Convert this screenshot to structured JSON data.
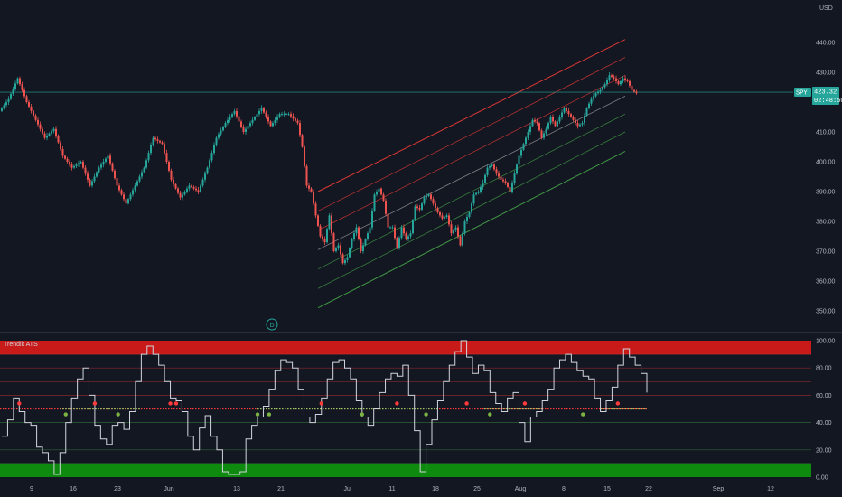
{
  "colors": {
    "background": "#131722",
    "up": "#26a69a",
    "down": "#ef5350",
    "channel_upper": "#e53935",
    "channel_lower": "#43a047",
    "osc_line": "#d1d4dc",
    "overbought_band": "#c91a1a",
    "oversold_band": "#0e8a0e",
    "midline_red": "#ff3b3b",
    "midline_green": "#9ccc65",
    "price_line": "#26a69a"
  },
  "header": {
    "currency": "USD"
  },
  "price_badge": {
    "symbol": "SPY",
    "price": "423.32",
    "countdown": "02:48:50"
  },
  "event_marker": {
    "label": "D"
  },
  "chart_data": [
    {
      "type": "candlestick",
      "symbol": "SPY",
      "y_ticks": [
        "440.00",
        "430.00",
        "420.00",
        "410.00",
        "400.00",
        "390.00",
        "380.00",
        "370.00",
        "360.00",
        "350.00"
      ],
      "y_tick_values": [
        440,
        430,
        420,
        410,
        400,
        390,
        380,
        370,
        360,
        350
      ],
      "x_ticks": [
        "9",
        "16",
        "23",
        "Jun",
        "13",
        "21",
        "Jul",
        "11",
        "18",
        "25",
        "Aug",
        "8",
        "15",
        "22",
        "Sep",
        "12"
      ],
      "last_price": 423.32,
      "price_path": [
        [
          0,
          417
        ],
        [
          4,
          421
        ],
        [
          8,
          428
        ],
        [
          12,
          420
        ],
        [
          16,
          414
        ],
        [
          20,
          408
        ],
        [
          24,
          411
        ],
        [
          28,
          402
        ],
        [
          32,
          398
        ],
        [
          36,
          400
        ],
        [
          40,
          392
        ],
        [
          44,
          398
        ],
        [
          48,
          402
        ],
        [
          52,
          392
        ],
        [
          56,
          386
        ],
        [
          60,
          392
        ],
        [
          64,
          398
        ],
        [
          68,
          408
        ],
        [
          72,
          406
        ],
        [
          76,
          394
        ],
        [
          80,
          388
        ],
        [
          84,
          392
        ],
        [
          88,
          390
        ],
        [
          92,
          398
        ],
        [
          96,
          408
        ],
        [
          100,
          413
        ],
        [
          104,
          417
        ],
        [
          108,
          410
        ],
        [
          112,
          414
        ],
        [
          116,
          418
        ],
        [
          120,
          412
        ],
        [
          124,
          416
        ],
        [
          128,
          416
        ],
        [
          132,
          413
        ],
        [
          134,
          405
        ],
        [
          136,
          392
        ],
        [
          138,
          390
        ],
        [
          140,
          382
        ],
        [
          142,
          375
        ],
        [
          144,
          373
        ],
        [
          146,
          382
        ],
        [
          148,
          370
        ],
        [
          150,
          372
        ],
        [
          152,
          366
        ],
        [
          154,
          368
        ],
        [
          156,
          374
        ],
        [
          158,
          378
        ],
        [
          160,
          370
        ],
        [
          162,
          374
        ],
        [
          164,
          378
        ],
        [
          166,
          389
        ],
        [
          168,
          391
        ],
        [
          170,
          387
        ],
        [
          172,
          378
        ],
        [
          174,
          378
        ],
        [
          176,
          371
        ],
        [
          178,
          378
        ],
        [
          180,
          374
        ],
        [
          182,
          376
        ],
        [
          184,
          385
        ],
        [
          186,
          384
        ],
        [
          188,
          388
        ],
        [
          190,
          389
        ],
        [
          192,
          386
        ],
        [
          194,
          383
        ],
        [
          196,
          381
        ],
        [
          198,
          382
        ],
        [
          200,
          376
        ],
        [
          202,
          378
        ],
        [
          204,
          372
        ],
        [
          206,
          380
        ],
        [
          208,
          383
        ],
        [
          210,
          389
        ],
        [
          212,
          390
        ],
        [
          214,
          393
        ],
        [
          216,
          398
        ],
        [
          218,
          399
        ],
        [
          220,
          396
        ],
        [
          222,
          394
        ],
        [
          224,
          393
        ],
        [
          226,
          390
        ],
        [
          228,
          396
        ],
        [
          230,
          402
        ],
        [
          232,
          406
        ],
        [
          234,
          410
        ],
        [
          236,
          414
        ],
        [
          238,
          413
        ],
        [
          240,
          408
        ],
        [
          242,
          411
        ],
        [
          244,
          415
        ],
        [
          246,
          412
        ],
        [
          248,
          415
        ],
        [
          250,
          418
        ],
        [
          252,
          416
        ],
        [
          254,
          414
        ],
        [
          256,
          412
        ],
        [
          258,
          413
        ],
        [
          260,
          418
        ],
        [
          262,
          421
        ],
        [
          264,
          423
        ],
        [
          266,
          424
        ],
        [
          268,
          426
        ],
        [
          270,
          429
        ],
        [
          272,
          428
        ],
        [
          274,
          426
        ],
        [
          276,
          428
        ],
        [
          278,
          427
        ],
        [
          280,
          424
        ],
        [
          282,
          423
        ]
      ],
      "regression_channel": {
        "start_index": 140,
        "end_index": 276,
        "lines_start": [
          390,
          383.5,
          377,
          370.5,
          364,
          357.5,
          351
        ],
        "lines_end": [
          441,
          435,
          429,
          422,
          416,
          410,
          403.5
        ]
      }
    },
    {
      "type": "line",
      "title": "Trendlit ATS",
      "y_ticks": [
        "100.00",
        "80.00",
        "60.00",
        "40.00",
        "20.00",
        "0.00"
      ],
      "y_tick_values": [
        100,
        80,
        60,
        40,
        20,
        0
      ],
      "grid_levels": [
        90,
        80,
        70,
        60,
        40,
        30,
        20,
        10
      ],
      "overbought_band": [
        90,
        100
      ],
      "oversold_band": [
        0,
        10
      ],
      "midline": 50,
      "last_value": 62,
      "values": [
        [
          0,
          30
        ],
        [
          2,
          42
        ],
        [
          4,
          58
        ],
        [
          6,
          48
        ],
        [
          8,
          40
        ],
        [
          10,
          38
        ],
        [
          12,
          22
        ],
        [
          14,
          18
        ],
        [
          16,
          12
        ],
        [
          18,
          2
        ],
        [
          20,
          18
        ],
        [
          22,
          40
        ],
        [
          24,
          58
        ],
        [
          26,
          72
        ],
        [
          28,
          80
        ],
        [
          30,
          60
        ],
        [
          32,
          38
        ],
        [
          34,
          28
        ],
        [
          36,
          24
        ],
        [
          38,
          38
        ],
        [
          40,
          40
        ],
        [
          42,
          35
        ],
        [
          44,
          48
        ],
        [
          46,
          70
        ],
        [
          48,
          90
        ],
        [
          50,
          96
        ],
        [
          52,
          90
        ],
        [
          54,
          82
        ],
        [
          56,
          70
        ],
        [
          58,
          58
        ],
        [
          60,
          56
        ],
        [
          62,
          48
        ],
        [
          64,
          30
        ],
        [
          66,
          20
        ],
        [
          68,
          36
        ],
        [
          70,
          45
        ],
        [
          72,
          30
        ],
        [
          74,
          20
        ],
        [
          76,
          4
        ],
        [
          78,
          2
        ],
        [
          80,
          2
        ],
        [
          82,
          4
        ],
        [
          84,
          28
        ],
        [
          86,
          38
        ],
        [
          88,
          44
        ],
        [
          90,
          52
        ],
        [
          92,
          64
        ],
        [
          94,
          78
        ],
        [
          96,
          86
        ],
        [
          98,
          84
        ],
        [
          100,
          80
        ],
        [
          102,
          64
        ],
        [
          104,
          44
        ],
        [
          106,
          40
        ],
        [
          108,
          46
        ],
        [
          110,
          58
        ],
        [
          112,
          72
        ],
        [
          114,
          84
        ],
        [
          116,
          86
        ],
        [
          118,
          80
        ],
        [
          120,
          72
        ],
        [
          122,
          56
        ],
        [
          124,
          44
        ],
        [
          126,
          38
        ],
        [
          128,
          50
        ],
        [
          130,
          62
        ],
        [
          132,
          72
        ],
        [
          134,
          76
        ],
        [
          136,
          74
        ],
        [
          138,
          82
        ],
        [
          140,
          60
        ],
        [
          142,
          34
        ],
        [
          144,
          4
        ],
        [
          146,
          24
        ],
        [
          148,
          42
        ],
        [
          150,
          56
        ],
        [
          152,
          70
        ],
        [
          154,
          82
        ],
        [
          156,
          92
        ],
        [
          158,
          100
        ],
        [
          160,
          88
        ],
        [
          162,
          76
        ],
        [
          164,
          82
        ],
        [
          166,
          78
        ],
        [
          168,
          62
        ],
        [
          170,
          54
        ],
        [
          172,
          48
        ],
        [
          174,
          58
        ],
        [
          176,
          62
        ],
        [
          178,
          40
        ],
        [
          180,
          26
        ],
        [
          182,
          44
        ],
        [
          184,
          48
        ],
        [
          186,
          56
        ],
        [
          188,
          64
        ],
        [
          190,
          80
        ],
        [
          192,
          86
        ],
        [
          194,
          90
        ],
        [
          196,
          84
        ],
        [
          198,
          78
        ],
        [
          200,
          74
        ],
        [
          202,
          72
        ],
        [
          204,
          58
        ],
        [
          206,
          48
        ],
        [
          208,
          56
        ],
        [
          210,
          66
        ],
        [
          212,
          82
        ],
        [
          214,
          94
        ],
        [
          216,
          88
        ],
        [
          218,
          82
        ],
        [
          220,
          76
        ],
        [
          222,
          62
        ]
      ]
    }
  ]
}
